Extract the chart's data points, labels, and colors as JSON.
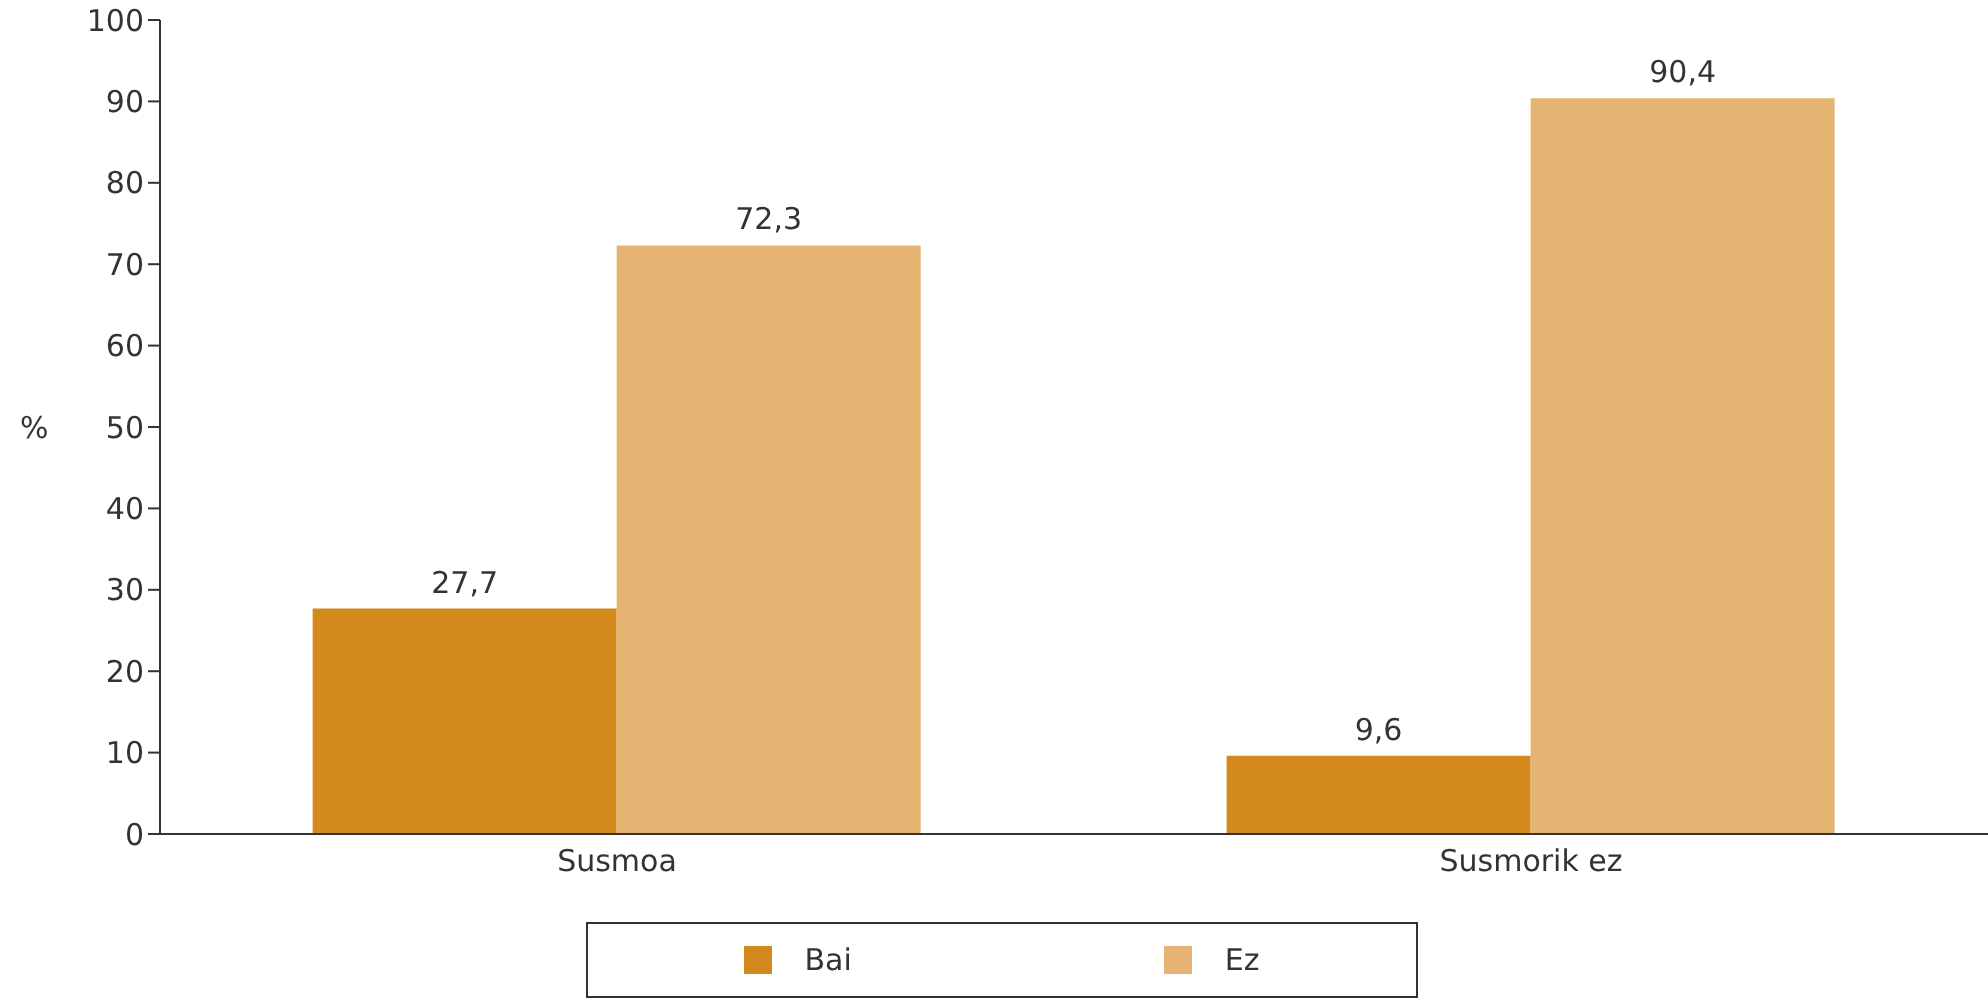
{
  "chart_data": {
    "type": "bar",
    "ylabel": "%",
    "categories": [
      "Susmoa",
      "Susmorik ez"
    ],
    "series": [
      {
        "name": "Bai",
        "color": "#d4891c",
        "values": [
          27.7,
          9.6
        ],
        "value_labels": [
          "27,7",
          "9,6"
        ]
      },
      {
        "name": "Ez",
        "color": "#e6b472",
        "values": [
          72.3,
          90.4
        ],
        "value_labels": [
          "72,3",
          "90,4"
        ]
      }
    ],
    "ylim": [
      0,
      100
    ],
    "yticks": [
      0,
      10,
      20,
      30,
      40,
      50,
      60,
      70,
      80,
      90,
      100
    ],
    "grid": false,
    "legend": "bottom"
  }
}
